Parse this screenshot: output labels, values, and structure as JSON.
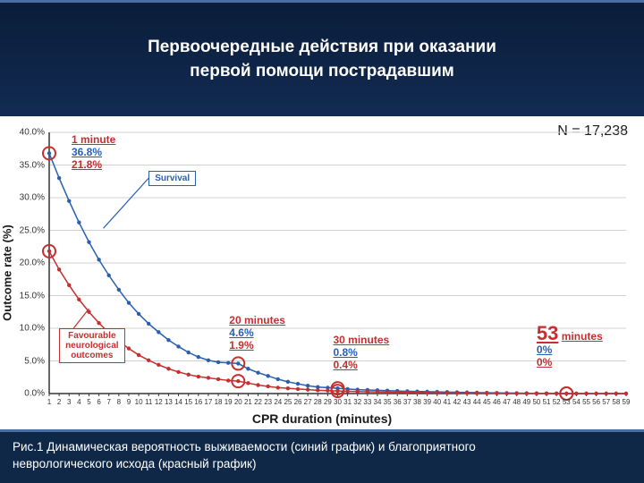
{
  "header": {
    "title_line1": "Первоочередные действия при оказании",
    "title_line2": "первой помощи пострадавшим"
  },
  "caption": {
    "line1": "Рис.1 Динамическая вероятность выживаемости (синий график) и благоприятного",
    "line2": "неврологического исхода (красный график)"
  },
  "chart": {
    "type": "line",
    "n_label": "N = 17,238",
    "xlabel": "CPR duration (minutes)",
    "ylabel": "Outcome rate (%)",
    "xlim": [
      1,
      59
    ],
    "ylim": [
      0,
      40
    ],
    "ytick_step": 5,
    "yticks": [
      "0.0%",
      "5.0%",
      "10.0%",
      "15.0%",
      "20.0%",
      "25.0%",
      "30.0%",
      "35.0%",
      "40.0%"
    ],
    "xticks": [
      1,
      2,
      3,
      4,
      5,
      6,
      7,
      8,
      9,
      10,
      11,
      12,
      13,
      14,
      15,
      16,
      17,
      18,
      19,
      20,
      21,
      22,
      23,
      24,
      25,
      26,
      27,
      28,
      29,
      30,
      31,
      32,
      33,
      34,
      35,
      36,
      37,
      38,
      39,
      40,
      41,
      42,
      43,
      44,
      45,
      46,
      47,
      48,
      49,
      50,
      51,
      52,
      53,
      54,
      55,
      56,
      57,
      58,
      59
    ],
    "grid_color": "#d0d0d0",
    "background_color": "#ffffff",
    "line_width": 1.5,
    "marker_radius": 2.2,
    "series": {
      "survival": {
        "label": "Survival",
        "color": "#2a5fb0",
        "values": [
          36.8,
          33.0,
          29.5,
          26.2,
          23.2,
          20.5,
          18.1,
          15.9,
          13.9,
          12.2,
          10.7,
          9.4,
          8.2,
          7.2,
          6.3,
          5.6,
          5.1,
          4.8,
          4.7,
          4.6,
          3.8,
          3.2,
          2.7,
          2.2,
          1.8,
          1.5,
          1.2,
          1.0,
          0.9,
          0.8,
          0.7,
          0.6,
          0.55,
          0.5,
          0.45,
          0.4,
          0.35,
          0.32,
          0.29,
          0.26,
          0.23,
          0.2,
          0.17,
          0.15,
          0.12,
          0.1,
          0.08,
          0.06,
          0.05,
          0.04,
          0.03,
          0.02,
          0.0,
          0.0,
          0.0,
          0.0,
          0.0,
          0.0,
          0.0
        ]
      },
      "neuro": {
        "label": "Favourable neurological outcomes",
        "color": "#c43030",
        "values": [
          21.8,
          19.0,
          16.6,
          14.4,
          12.5,
          10.8,
          9.3,
          8.0,
          6.9,
          5.9,
          5.1,
          4.4,
          3.8,
          3.3,
          2.9,
          2.6,
          2.4,
          2.2,
          2.0,
          1.9,
          1.6,
          1.3,
          1.1,
          0.9,
          0.8,
          0.7,
          0.6,
          0.5,
          0.45,
          0.4,
          0.35,
          0.3,
          0.28,
          0.25,
          0.22,
          0.2,
          0.17,
          0.15,
          0.13,
          0.11,
          0.1,
          0.08,
          0.07,
          0.06,
          0.05,
          0.04,
          0.03,
          0.02,
          0.02,
          0.01,
          0.01,
          0.005,
          0.0,
          0.0,
          0.0,
          0.0,
          0.0,
          0.0,
          0.0
        ]
      }
    },
    "highlights": [
      1,
      20,
      30,
      53
    ],
    "highlight_color": "#c43030",
    "highlight_radius": 7,
    "annotations": [
      {
        "x": 1,
        "time": "1 minute",
        "survival": "36.8%",
        "neuro": "21.8%",
        "big": false
      },
      {
        "x": 20,
        "time": "20 minutes",
        "survival": "4.6%",
        "neuro": "1.9%",
        "big": false
      },
      {
        "x": 30,
        "time": "30 minutes",
        "survival": "0.8%",
        "neuro": "0.4%",
        "big": false
      },
      {
        "x": 53,
        "time": "53",
        "time_unit": "minutes",
        "survival": "0%",
        "neuro": "0%",
        "big": true
      }
    ],
    "legend": {
      "survival_label": "Survival",
      "neuro_label_l1": "Favourable",
      "neuro_label_l2": "neurological",
      "neuro_label_l3": "outcomes"
    }
  }
}
